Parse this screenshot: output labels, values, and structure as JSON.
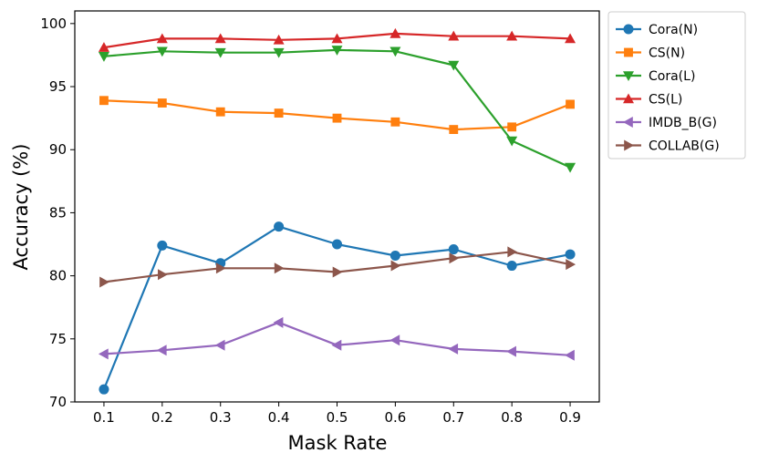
{
  "chart_data": {
    "type": "line",
    "title": "",
    "xlabel": "Mask Rate",
    "ylabel": "Accuracy (%)",
    "x": [
      0.1,
      0.2,
      0.3,
      0.4,
      0.5,
      0.6,
      0.7,
      0.8,
      0.9
    ],
    "x_tick_labels": [
      "0.1",
      "0.2",
      "0.3",
      "0.4",
      "0.5",
      "0.6",
      "0.7",
      "0.8",
      "0.9"
    ],
    "y_ticks": [
      70,
      75,
      80,
      85,
      90,
      95,
      100
    ],
    "y_tick_labels": [
      "70",
      "75",
      "80",
      "85",
      "90",
      "95",
      "100"
    ],
    "ylim": [
      70,
      101
    ],
    "xlim": [
      0.05,
      0.95
    ],
    "grid": false,
    "legend_position": "outside-top-right",
    "series": [
      {
        "name": "Cora(N)",
        "color": "#1f77b4",
        "marker": "circle",
        "values": [
          71.0,
          82.4,
          81.0,
          83.9,
          82.5,
          81.6,
          82.1,
          80.8,
          81.7
        ]
      },
      {
        "name": "CS(N)",
        "color": "#ff7f0e",
        "marker": "square",
        "values": [
          93.9,
          93.7,
          93.0,
          92.9,
          92.5,
          92.2,
          91.6,
          91.8,
          93.6
        ]
      },
      {
        "name": "Cora(L)",
        "color": "#2ca02c",
        "marker": "triangle-down",
        "values": [
          97.4,
          97.8,
          97.7,
          97.7,
          97.9,
          97.8,
          96.7,
          90.7,
          88.6
        ]
      },
      {
        "name": "CS(L)",
        "color": "#d62728",
        "marker": "triangle-up",
        "values": [
          98.1,
          98.8,
          98.8,
          98.7,
          98.8,
          99.2,
          99.0,
          99.0,
          98.8
        ]
      },
      {
        "name": "IMDB_B(G)",
        "color": "#9467bd",
        "marker": "triangle-left",
        "values": [
          73.8,
          74.1,
          74.5,
          76.3,
          74.5,
          74.9,
          74.2,
          74.0,
          73.7
        ]
      },
      {
        "name": "COLLAB(G)",
        "color": "#8c564b",
        "marker": "triangle-right",
        "values": [
          79.5,
          80.1,
          80.6,
          80.6,
          80.3,
          80.8,
          81.4,
          81.9,
          80.9
        ]
      }
    ]
  }
}
